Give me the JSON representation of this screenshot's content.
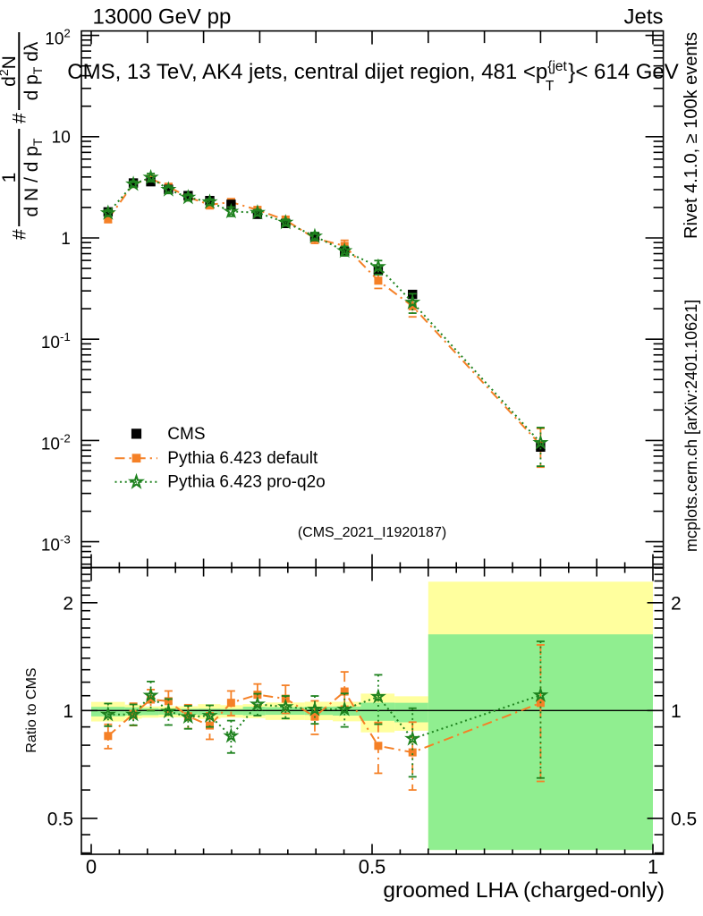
{
  "header": {
    "left_title": "13000 GeV pp",
    "right_title": "Jets"
  },
  "plot_title": {
    "prefix": "CMS, 13 TeV, AK4 jets, central dijet region, 481 <p",
    "sup": "{jet",
    "sub": "T",
    "suffix": "}< 614 GeV"
  },
  "watermark": "(CMS_2021_I1920187)",
  "side_notes": {
    "top": "Rivet 4.1.0, ≥ 100k events",
    "bottom": "mcplots.cern.ch [arXiv:2401.10621]"
  },
  "axis_labels": {
    "x": "groomed LHA (charged-only)",
    "ratio_y": "Ratio to CMS",
    "main_y": {
      "hash1": "#",
      "frac1_num": "1",
      "frac1_den_main": "d N / d p",
      "frac1_den_sub": "T",
      "hash2": "#",
      "frac2_num_d": "d",
      "frac2_num_sup": "2",
      "frac2_num_tail": "N",
      "frac2_den_main": "d p",
      "frac2_den_sub": "T",
      "frac2_den_tail": " dλ"
    }
  },
  "legend": {
    "items": [
      {
        "label": "CMS",
        "series": "cms"
      },
      {
        "label": "Pythia 6.423 default",
        "series": "default"
      },
      {
        "label": "Pythia 6.423 pro-q2o",
        "series": "proq2o"
      }
    ]
  },
  "chart_data": {
    "type": "line",
    "title": "CMS, 13 TeV, AK4 jets, central dijet region, 481 < pT(jet) < 614 GeV",
    "xlabel": "groomed LHA (charged-only)",
    "ylabel": "# 1/(dN/dpT) # d2N/(dpT dlambda)",
    "ratio_ylabel": "Ratio to CMS",
    "x_axis": {
      "range": [
        -0.0175,
        1.0185
      ],
      "major_ticks": [
        0,
        0.5,
        1
      ],
      "major_labels": [
        "0",
        "0.5",
        "1"
      ],
      "mid_step": 0.1,
      "minor_step": 0.05
    },
    "main_y_axis": {
      "scale": "log",
      "range": [
        0.000555,
        110.7
      ],
      "major_ticks": [
        100,
        10,
        1,
        0.1,
        0.01,
        0.001
      ],
      "major_labels": [
        [
          "10",
          "2"
        ],
        [
          "10",
          ""
        ],
        [
          "1",
          ""
        ],
        [
          "10",
          "-1"
        ],
        [
          "10",
          "-2"
        ],
        [
          "10",
          "-3"
        ]
      ]
    },
    "ratio_y_axis": {
      "scale": "log",
      "range": [
        0.3967,
        2.508
      ],
      "major_ticks": [
        2,
        1,
        0.5
      ],
      "major_labels": [
        "2",
        "1",
        "0.5"
      ],
      "reference": 1
    },
    "x": [
      0.03,
      0.075,
      0.106,
      0.1375,
      0.1725,
      0.211,
      0.249,
      0.296,
      0.346,
      0.398,
      0.451,
      0.511,
      0.572,
      0.8
    ],
    "series": [
      {
        "name": "CMS",
        "color": "#000000",
        "marker": "filled-square",
        "marker_size": 10.4,
        "line": "none",
        "values": [
          1.81,
          3.49,
          3.59,
          3.02,
          2.62,
          2.34,
          2.15,
          1.71,
          1.39,
          1.03,
          0.739,
          0.475,
          0.277,
          0.0086
        ]
      },
      {
        "name": "Pythia 6.423 default",
        "color": "#f58026",
        "marker": "filled-square",
        "marker_size": 9,
        "line": "dashdot",
        "ratio": [
          0.849,
          0.978,
          1.073,
          1.062,
          0.964,
          0.908,
          1.051,
          1.107,
          1.079,
          0.961,
          1.13,
          0.797,
          0.764,
          1.05
        ],
        "ratio_err": [
          [
            0.783,
            0.915
          ],
          [
            0.908,
            1.048
          ],
          [
            1.002,
            1.144
          ],
          [
            0.99,
            1.134
          ],
          [
            0.89,
            1.038
          ],
          [
            0.831,
            0.985
          ],
          [
            0.968,
            1.134
          ],
          [
            1.028,
            1.186
          ],
          [
            0.982,
            1.176
          ],
          [
            0.858,
            1.064
          ],
          [
            1.028,
            1.282
          ],
          [
            0.668,
            0.926
          ],
          [
            0.6,
            0.928
          ],
          [
            0.634,
            1.525
          ]
        ]
      },
      {
        "name": "Pythia 6.423 pro-q2o",
        "color": "#1e821e",
        "marker": "open-star",
        "marker_size": 12.6,
        "line": "dotted",
        "ratio": [
          0.975,
          0.975,
          1.102,
          0.994,
          0.96,
          0.967,
          0.849,
          1.041,
          1.024,
          1.008,
          1.008,
          1.093,
          0.834,
          1.104
        ],
        "ratio_err": [
          [
            0.904,
            1.046
          ],
          [
            0.91,
            1.04
          ],
          [
            0.999,
            1.205
          ],
          [
            0.911,
            1.077
          ],
          [
            0.889,
            1.031
          ],
          [
            0.9,
            1.034
          ],
          [
            0.761,
            0.937
          ],
          [
            0.968,
            1.114
          ],
          [
            0.95,
            1.098
          ],
          [
            0.918,
            1.098
          ],
          [
            0.9,
            1.116
          ],
          [
            0.916,
            1.258
          ],
          [
            0.653,
            1.015
          ],
          [
            0.648,
            1.56
          ]
        ]
      }
    ],
    "uncertainty_bands": {
      "yellow_color": "#ffff9e",
      "green_color": "#90ee90",
      "bin_edges": [
        0,
        0.06,
        0.09,
        0.12,
        0.155,
        0.19,
        0.23,
        0.27,
        0.31,
        0.38,
        0.43,
        0.48,
        0.54,
        0.6,
        1.0
      ],
      "yellow": [
        [
          0.932,
          1.057
        ],
        [
          0.949,
          1.039
        ],
        [
          0.955,
          1.027
        ],
        [
          0.957,
          1.028
        ],
        [
          0.957,
          1.028
        ],
        [
          0.947,
          1.042
        ],
        [
          0.955,
          1.035
        ],
        [
          0.952,
          1.042
        ],
        [
          0.941,
          1.053
        ],
        [
          0.94,
          1.058
        ],
        [
          0.933,
          1.058
        ],
        [
          0.869,
          1.115
        ],
        [
          0.878,
          1.096
        ],
        [
          0.408,
          2.29
        ]
      ],
      "green": [
        [
          0.963,
          1.024
        ],
        [
          0.969,
          1.021
        ],
        [
          0.971,
          1.015
        ],
        [
          0.974,
          1.011
        ],
        [
          0.974,
          1.011
        ],
        [
          0.972,
          1.012
        ],
        [
          0.973,
          1.01
        ],
        [
          0.97,
          1.025
        ],
        [
          0.973,
          1.022
        ],
        [
          0.972,
          1.025
        ],
        [
          0.968,
          1.026
        ],
        [
          0.936,
          1.052
        ],
        [
          0.927,
          1.051
        ],
        [
          0.408,
          1.632
        ]
      ]
    },
    "grid": false,
    "legend_position": "middle-left"
  }
}
